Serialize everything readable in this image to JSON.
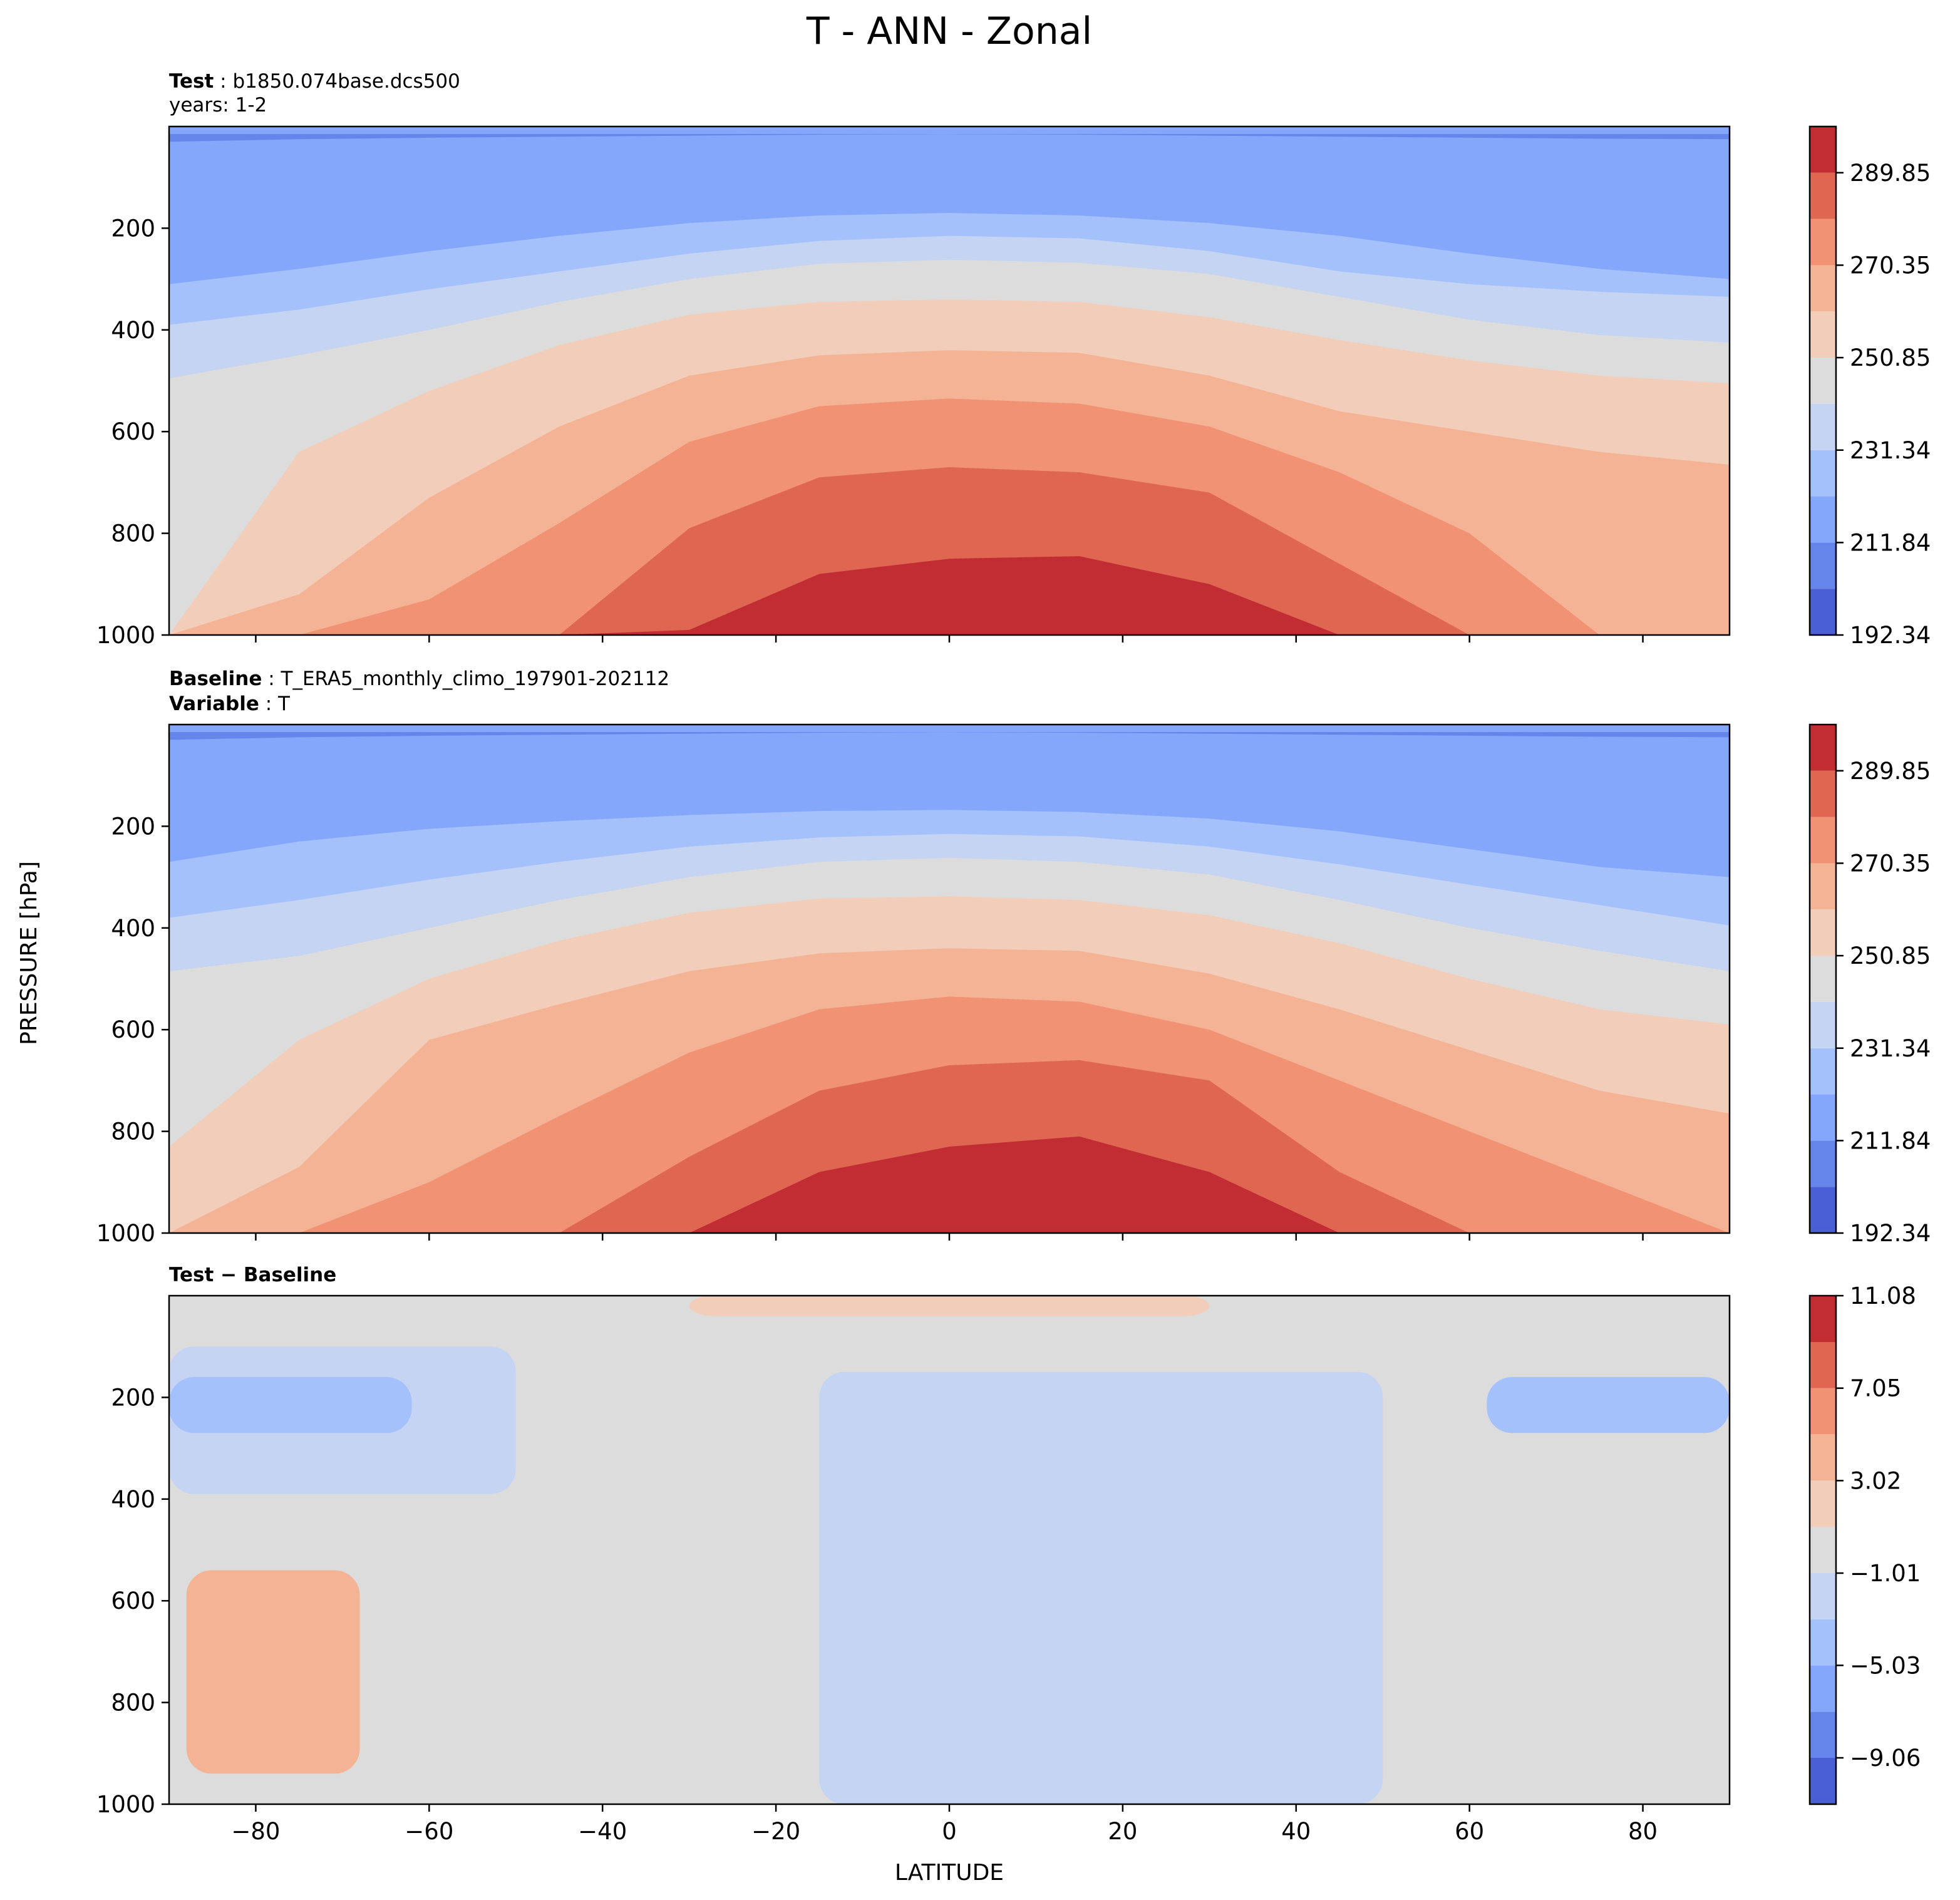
{
  "figure": {
    "title": "T - ANN - Zonal",
    "ylabel": "PRESSURE [hPa]",
    "xlabel": "LATITUDE",
    "panel1_label_bold": "Test",
    "panel1_label_value": "b1850.074base.dcs500",
    "panel1_years": "years: 1-2",
    "panel2_label_bold": "Baseline",
    "panel2_label_value": "T_ERA5_monthly_climo_197901-202112",
    "panel2_var_bold": "Variable",
    "panel2_var_value": "T",
    "panel3_label_test": "Test",
    "panel3_label_minus": "−",
    "panel3_label_base": "Baseline"
  },
  "chart_data": [
    {
      "type": "heatmap",
      "panel": "Test",
      "xlim": [
        -90,
        90
      ],
      "ylim": [
        1000,
        0
      ],
      "x_ticks": [
        -80,
        -60,
        -40,
        -20,
        0,
        20,
        40,
        60,
        80
      ],
      "y_ticks": [
        200,
        400,
        600,
        800,
        1000
      ],
      "y_tick_labels": [
        "200",
        "400",
        "600",
        "800",
        "1000"
      ],
      "colorbar_ticks": [
        "192.34",
        "211.84",
        "231.34",
        "250.85",
        "270.35",
        "289.85"
      ],
      "colorbar_tick_values": [
        192.34,
        211.84,
        231.34,
        250.85,
        270.35,
        289.85
      ],
      "colorbar_levels": [
        192.34,
        202.09,
        211.84,
        221.59,
        231.34,
        241.1,
        250.85,
        260.6,
        270.35,
        280.1,
        289.85,
        299.6
      ],
      "colormap": "coolwarm",
      "contour_boundaries_hPa": {
        "lat": [
          -90,
          -75,
          -60,
          -45,
          -30,
          -15,
          0,
          15,
          30,
          45,
          60,
          75,
          90
        ],
        "levels": [
          [
            30,
            25,
            22,
            20,
            18,
            16,
            15,
            16,
            18,
            20,
            22,
            24,
            25
          ],
          [
            310,
            280,
            245,
            215,
            190,
            175,
            170,
            175,
            190,
            215,
            250,
            280,
            300
          ],
          [
            390,
            360,
            320,
            285,
            250,
            225,
            215,
            220,
            245,
            285,
            310,
            325,
            335
          ],
          [
            495,
            450,
            400,
            345,
            300,
            270,
            262,
            268,
            290,
            335,
            380,
            410,
            425
          ],
          [
            1000,
            640,
            520,
            430,
            370,
            345,
            340,
            345,
            375,
            420,
            460,
            490,
            505
          ],
          [
            1000,
            920,
            730,
            590,
            490,
            450,
            440,
            445,
            490,
            560,
            600,
            640,
            665
          ],
          [
            1000,
            1000,
            930,
            780,
            620,
            550,
            535,
            545,
            590,
            680,
            800,
            1000,
            1000
          ],
          [
            1000,
            1000,
            1000,
            1000,
            790,
            690,
            670,
            680,
            720,
            860,
            1000,
            1000,
            1000
          ],
          [
            1000,
            1000,
            1000,
            1000,
            990,
            880,
            850,
            845,
            900,
            1000,
            1000,
            1000,
            1000
          ]
        ]
      }
    },
    {
      "type": "heatmap",
      "panel": "Baseline",
      "xlim": [
        -90,
        90
      ],
      "ylim": [
        1000,
        0
      ],
      "x_ticks": [
        -80,
        -60,
        -40,
        -20,
        0,
        20,
        40,
        60,
        80
      ],
      "y_ticks": [
        200,
        400,
        600,
        800,
        1000
      ],
      "y_tick_labels": [
        "200",
        "400",
        "600",
        "800",
        "1000"
      ],
      "colorbar_ticks": [
        "192.34",
        "211.84",
        "231.34",
        "250.85",
        "270.35",
        "289.85"
      ],
      "colorbar_tick_values": [
        192.34,
        211.84,
        231.34,
        250.85,
        270.35,
        289.85
      ],
      "colorbar_levels": [
        192.34,
        202.09,
        211.84,
        221.59,
        231.34,
        241.1,
        250.85,
        260.6,
        270.35,
        280.1,
        289.85,
        299.6
      ],
      "colormap": "coolwarm",
      "contour_boundaries_hPa": {
        "lat": [
          -90,
          -75,
          -60,
          -45,
          -30,
          -15,
          0,
          15,
          30,
          45,
          60,
          75,
          90
        ],
        "levels": [
          [
            30,
            25,
            22,
            20,
            18,
            16,
            15,
            16,
            18,
            20,
            22,
            24,
            25
          ],
          [
            270,
            230,
            205,
            190,
            178,
            170,
            168,
            172,
            185,
            210,
            245,
            280,
            300
          ],
          [
            380,
            345,
            305,
            270,
            240,
            222,
            215,
            220,
            240,
            275,
            315,
            355,
            395
          ],
          [
            485,
            455,
            400,
            345,
            300,
            270,
            262,
            270,
            295,
            345,
            400,
            445,
            485
          ],
          [
            830,
            620,
            500,
            425,
            370,
            342,
            338,
            345,
            375,
            430,
            500,
            560,
            590
          ],
          [
            1000,
            870,
            620,
            550,
            485,
            450,
            440,
            445,
            490,
            560,
            640,
            720,
            765
          ],
          [
            1000,
            1000,
            900,
            770,
            645,
            560,
            535,
            545,
            600,
            700,
            800,
            900,
            1000
          ],
          [
            1000,
            1000,
            1000,
            1000,
            850,
            720,
            670,
            660,
            700,
            880,
            1000,
            1000,
            1000
          ],
          [
            1000,
            1000,
            1000,
            1000,
            1000,
            880,
            830,
            810,
            880,
            1000,
            1000,
            1000,
            1000
          ]
        ]
      }
    },
    {
      "type": "heatmap",
      "panel": "Test - Baseline",
      "xlim": [
        -90,
        90
      ],
      "ylim": [
        1000,
        0
      ],
      "x_ticks": [
        -80,
        -60,
        -40,
        -20,
        0,
        20,
        40,
        60,
        80
      ],
      "x_tick_labels": [
        "−80",
        "−60",
        "−40",
        "−20",
        "0",
        "20",
        "40",
        "60",
        "80"
      ],
      "y_ticks": [
        200,
        400,
        600,
        800,
        1000
      ],
      "y_tick_labels": [
        "200",
        "400",
        "600",
        "800",
        "1000"
      ],
      "colorbar_ticks": [
        "−9.06",
        "−5.03",
        "−1.01",
        "3.02",
        "7.05",
        "11.08"
      ],
      "colorbar_tick_values": [
        -9.06,
        -5.03,
        -1.01,
        3.02,
        7.05,
        11.08
      ],
      "colorbar_levels": [
        -11.08,
        -9.06,
        -7.05,
        -5.03,
        -3.02,
        -1.01,
        1.01,
        3.02,
        5.04,
        7.05,
        9.06,
        11.08
      ],
      "colormap": "coolwarm",
      "regions": [
        {
          "level": "-3.02 to -1.01",
          "lat_range": [
            -15,
            50
          ],
          "pressure_range_hPa": [
            150,
            1000
          ]
        },
        {
          "level": "-3.02 to -1.01",
          "lat_range": [
            -90,
            -50
          ],
          "pressure_range_hPa": [
            100,
            390
          ]
        },
        {
          "level": "-5.03 to -3.02",
          "lat_range": [
            -90,
            -62
          ],
          "pressure_range_hPa": [
            160,
            270
          ]
        },
        {
          "level": "-5.03 to -3.02",
          "lat_range": [
            62,
            90
          ],
          "pressure_range_hPa": [
            160,
            270
          ]
        },
        {
          "level": "1.01 to 3.02",
          "lat_range": [
            -30,
            30
          ],
          "pressure_range_hPa": [
            0,
            40
          ]
        },
        {
          "level": "1.01 to 5.04",
          "lat_range": [
            -88,
            -68
          ],
          "pressure_range_hPa": [
            540,
            940
          ]
        }
      ]
    }
  ]
}
